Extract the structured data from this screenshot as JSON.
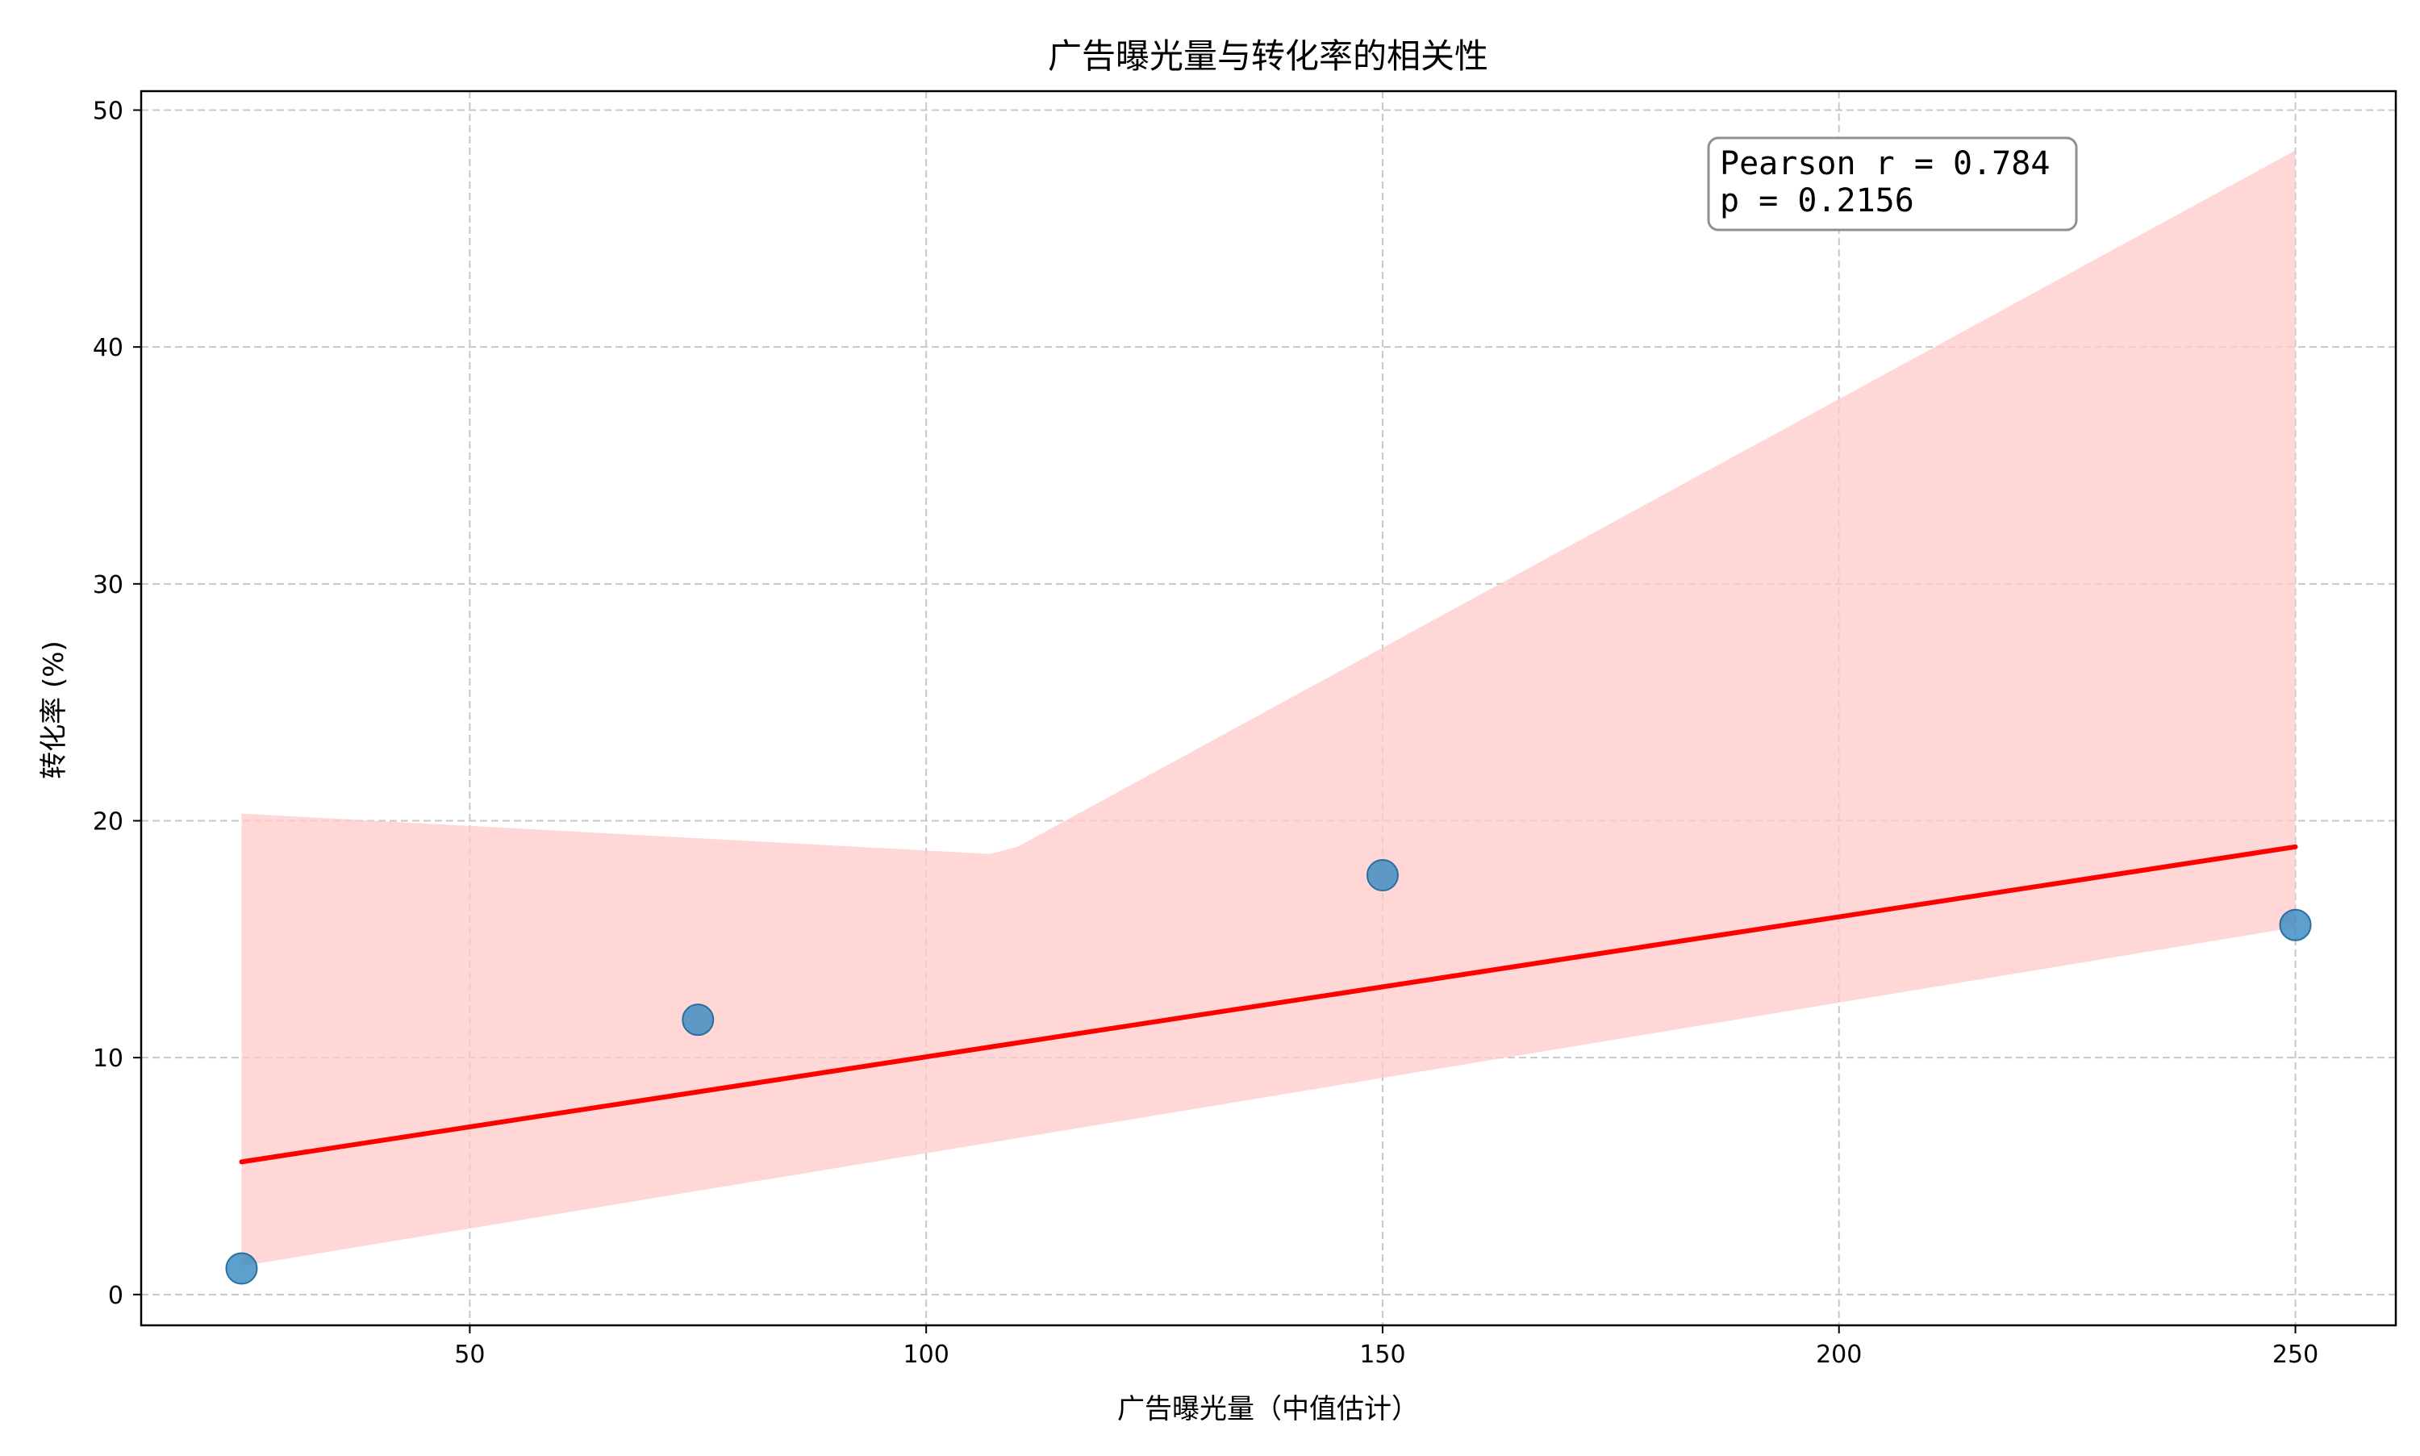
{
  "chart_data": {
    "type": "scatter",
    "title": "广告曝光量与转化率的相关性",
    "xlabel": "广告曝光量（中值估计）",
    "ylabel": "转化率 (%)",
    "xlim": [
      14,
      261
    ],
    "ylim": [
      -1.3,
      50.8
    ],
    "xticks": [
      50,
      100,
      150,
      200,
      250
    ],
    "yticks": [
      0,
      10,
      20,
      30,
      40,
      50
    ],
    "grid": true,
    "points": [
      {
        "x": 25,
        "y": 1.1
      },
      {
        "x": 75,
        "y": 11.6
      },
      {
        "x": 150,
        "y": 17.7
      },
      {
        "x": 250,
        "y": 15.6
      }
    ],
    "regression": {
      "x": [
        25,
        250
      ],
      "y": [
        5.6,
        18.9
      ]
    },
    "confidence_band": {
      "upper": [
        [
          25,
          20.3
        ],
        [
          107,
          18.6
        ],
        [
          110,
          18.9
        ],
        [
          250,
          48.3
        ]
      ],
      "lower": [
        [
          25,
          1.2
        ],
        [
          250,
          15.5
        ]
      ]
    },
    "annotation": {
      "line1": "Pearson r = 0.784",
      "line2": "p = 0.2156",
      "placement": "top-right"
    },
    "colors": {
      "points": "#3b8bc2",
      "points_edge": "#2a6f9f",
      "regression": "#ff0000",
      "band": "#ffc9c9",
      "grid": "#c8c8c8"
    }
  }
}
